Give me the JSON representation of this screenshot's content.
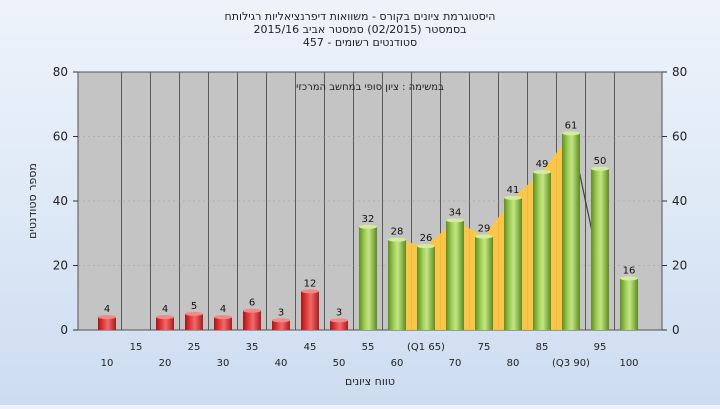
{
  "chart_data": {
    "type": "bar",
    "title_lines": [
      "היסטוגרמת ציונים בקורס - משוואות דיפרנציאליות רגילותח",
      "בסמסטר  (02/2015)  סמסטר אביב 2015/16",
      "סטודנטים רשומים - 457"
    ],
    "annotation": "במשימה : ציון סופי במחשב המרכזי",
    "xlabel": "טווח ציונים",
    "ylabel": "מספר סטודנטים",
    "ylim": [
      0,
      80
    ],
    "yticks": [
      0,
      20,
      40,
      60,
      80
    ],
    "grid": true,
    "bins": [
      "10",
      "15",
      "20",
      "25",
      "30",
      "35",
      "40",
      "45",
      "50",
      "55",
      "60",
      "65",
      "70",
      "75",
      "80",
      "85",
      "90",
      "95",
      "100"
    ],
    "x_tick_labels": [
      "10",
      "15",
      "20",
      "25",
      "30",
      "35",
      "40",
      "45",
      "50",
      "55",
      "60",
      "(Q1 65)",
      "70",
      "75",
      "80",
      "85",
      "(Q3 90)",
      "95",
      "100"
    ],
    "values": [
      4,
      0,
      4,
      5,
      4,
      6,
      3,
      12,
      3,
      32,
      28,
      26,
      34,
      29,
      41,
      49,
      61,
      50,
      16
    ],
    "fail_color": "#d42a2a",
    "pass_color": "#8ec04a",
    "fail_threshold_bins": 9,
    "highlight_area": {
      "color": "#ffc63d",
      "from_bin": "60",
      "to_bin": "90"
    },
    "highlight_line": {
      "color": "#404040",
      "from_bin": "90",
      "to_bin": "95"
    }
  }
}
